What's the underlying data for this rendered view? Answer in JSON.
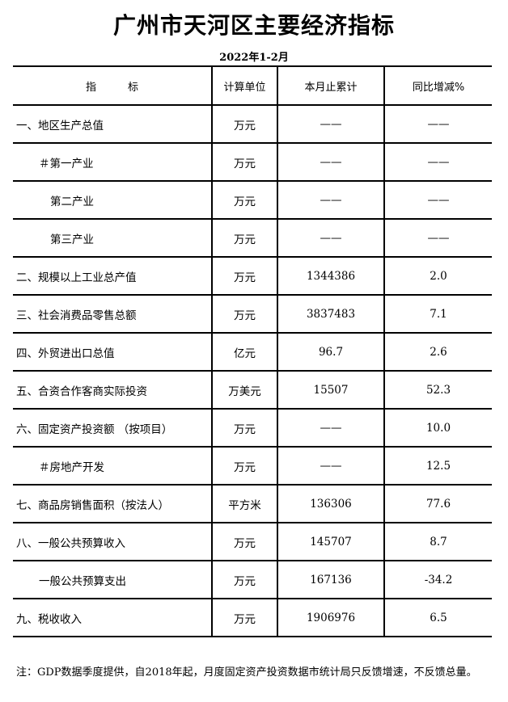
{
  "title": "广州市天河区主要经济指标",
  "period": "2022年1-2月",
  "headers": [
    "指　　　标",
    "计算单位",
    "本月止累计",
    "同比增减%"
  ],
  "rows": [
    {
      "indicator": "一、地区生产总值",
      "unit": "万元",
      "cumulative": "——",
      "yoy": "——",
      "indent": 0
    },
    {
      "indicator": "＃第一产业",
      "unit": "万元",
      "cumulative": "——",
      "yoy": "——",
      "indent": 1
    },
    {
      "indicator": "第二产业",
      "unit": "万元",
      "cumulative": "——",
      "yoy": "——",
      "indent": 2
    },
    {
      "indicator": "第三产业",
      "unit": "万元",
      "cumulative": "——",
      "yoy": "——",
      "indent": 2
    },
    {
      "indicator": "二、规模以上工业总产值",
      "unit": "万元",
      "cumulative": "1344386",
      "yoy": "2.0",
      "indent": 0
    },
    {
      "indicator": "三、社会消费品零售总额",
      "unit": "万元",
      "cumulative": "3837483",
      "yoy": "7.1",
      "indent": 0
    },
    {
      "indicator": "四、外贸进出口总值",
      "unit": "亿元",
      "cumulative": "96.7",
      "yoy": "2.6",
      "indent": 0
    },
    {
      "indicator": "五、合资合作客商实际投资",
      "unit": "万美元",
      "cumulative": "15507",
      "yoy": "52.3",
      "indent": 0
    },
    {
      "indicator": "六、固定资产投资额 （按项目）",
      "unit": "万元",
      "cumulative": "——",
      "yoy": "10.0",
      "indent": 0
    },
    {
      "indicator": "＃房地产开发",
      "unit": "万元",
      "cumulative": "——",
      "yoy": "12.5",
      "indent": 1
    },
    {
      "indicator": "七、商品房销售面积（按法人）",
      "unit": "平方米",
      "cumulative": "136306",
      "yoy": "77.6",
      "indent": 0
    },
    {
      "indicator": "八、一般公共预算收入",
      "unit": "万元",
      "cumulative": "145707",
      "yoy": "8.7",
      "indent": 0
    },
    {
      "indicator": "一般公共预算支出",
      "unit": "万元",
      "cumulative": "167136",
      "yoy": "-34.2",
      "indent": 1
    },
    {
      "indicator": "九、税收收入",
      "unit": "万元",
      "cumulative": "1906976",
      "yoy": "6.5",
      "indent": 0
    }
  ],
  "note": "注：GDP数据季度提供，自2018年起，月度固定资产投资数据市统计局只反馈增速，不反馈总量。"
}
